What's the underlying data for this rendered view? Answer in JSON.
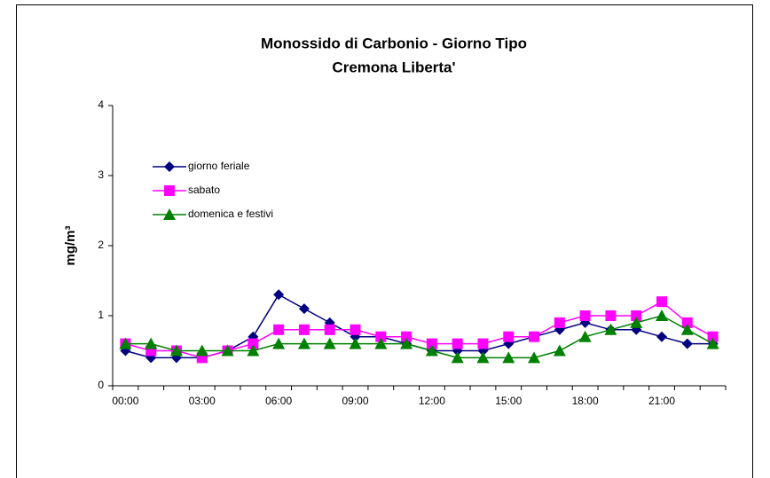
{
  "chart_data": {
    "type": "line",
    "title": [
      "Monossido di Carbonio - Giorno Tipo",
      "Cremona Liberta'"
    ],
    "y_label": "mg/m³",
    "categories": [
      "00:00",
      null,
      null,
      "03:00",
      null,
      null,
      "06:00",
      null,
      null,
      "09:00",
      null,
      null,
      "12:00",
      null,
      null,
      "15:00",
      null,
      null,
      "18:00",
      null,
      null,
      "21:00",
      null,
      null
    ],
    "series": [
      {
        "name": "giorno feriale",
        "color": "#000080",
        "marker": "diamond",
        "values": [
          0.5,
          0.4,
          0.4,
          0.4,
          0.5,
          0.7,
          1.3,
          1.1,
          0.9,
          0.7,
          0.7,
          0.6,
          0.5,
          0.5,
          0.5,
          0.6,
          0.7,
          0.8,
          0.9,
          0.8,
          0.8,
          0.7,
          0.6,
          0.6
        ]
      },
      {
        "name": "sabato",
        "color": "#ff00ff",
        "marker": "square",
        "values": [
          0.6,
          0.5,
          0.5,
          0.4,
          0.5,
          0.6,
          0.8,
          0.8,
          0.8,
          0.8,
          0.7,
          0.7,
          0.6,
          0.6,
          0.6,
          0.7,
          0.7,
          0.9,
          1.0,
          1.0,
          1.0,
          1.2,
          0.9,
          0.7
        ]
      },
      {
        "name": "domenica e festivi",
        "color": "#008000",
        "marker": "triangle",
        "values": [
          0.6,
          0.6,
          0.5,
          0.5,
          0.5,
          0.5,
          0.6,
          0.6,
          0.6,
          0.6,
          0.6,
          0.6,
          0.5,
          0.4,
          0.4,
          0.4,
          0.4,
          0.5,
          0.7,
          0.8,
          0.9,
          1.0,
          0.8,
          0.6
        ]
      }
    ],
    "ylim": [
      0,
      4
    ],
    "yticks": [
      0,
      1,
      2,
      3,
      4
    ],
    "grid": false,
    "legend": "top-left"
  }
}
